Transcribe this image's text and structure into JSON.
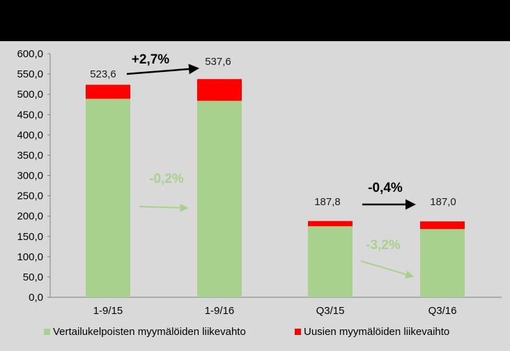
{
  "chart_data": {
    "type": "bar",
    "stacked": true,
    "categories": [
      "1-9/15",
      "1-9/16",
      "Q3/15",
      "Q3/16"
    ],
    "series": [
      {
        "name": "Vertailukelpoisten myymälöiden liikevahto",
        "values": [
          489.0,
          484.0,
          175.0,
          168.0
        ],
        "color": "#a9d18e"
      },
      {
        "name": "Uusien myymälöiden liikevaihto",
        "values": [
          34.6,
          53.6,
          12.8,
          19.0
        ],
        "color": "#ff0000"
      }
    ],
    "totals": [
      "523,6",
      "537,6",
      "187,8",
      "187,0"
    ],
    "ylim": [
      0,
      600
    ],
    "yticks": [
      "0,0",
      "50,0",
      "100,0",
      "150,0",
      "200,0",
      "250,0",
      "300,0",
      "350,0",
      "400,0",
      "450,0",
      "500,0",
      "550,0",
      "600,0"
    ],
    "grid": false,
    "legend_position": "bottom",
    "annotations": [
      {
        "text": "+2,7%",
        "color": "#000000",
        "arrow_color": "#000000"
      },
      {
        "text": "-0,2%",
        "color": "#a9d18e",
        "arrow_color": "#a9d18e"
      },
      {
        "text": "-0,4%",
        "color": "#000000",
        "arrow_color": "#000000"
      },
      {
        "text": "-3,2%",
        "color": "#a9d18e",
        "arrow_color": "#a9d18e"
      }
    ]
  }
}
